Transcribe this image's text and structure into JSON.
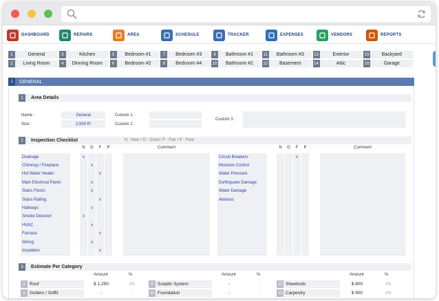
{
  "nav": [
    {
      "label": "DASHBOARD",
      "icon": "house-icon",
      "color": "#c0392b"
    },
    {
      "label": "REPAIRS",
      "icon": "repair-list-icon",
      "color": "#1f8a70"
    },
    {
      "label": "AREA",
      "icon": "map-pin-icon",
      "color": "#e67e22"
    },
    {
      "label": "SCHEDULE",
      "icon": "calendar-icon",
      "color": "#3a6fb5"
    },
    {
      "label": "TRACKER",
      "icon": "tracker-icon",
      "color": "#3a6fb5"
    },
    {
      "label": "EXPENSES",
      "icon": "monitor-icon",
      "color": "#2c6fbb"
    },
    {
      "label": "VENDORS",
      "icon": "vendor-icon",
      "color": "#27a05a"
    },
    {
      "label": "REPORTS",
      "icon": "report-icon",
      "color": "#d35400"
    }
  ],
  "tabs": {
    "row1": [
      {
        "num": "1",
        "label": "General"
      },
      {
        "num": "3",
        "label": "Kitchen"
      },
      {
        "num": "5",
        "label": "Bedroom #1"
      },
      {
        "num": "7",
        "label": "Bedroom #3"
      },
      {
        "num": "9",
        "label": "Bathroom #1"
      },
      {
        "num": "11",
        "label": "Bathroom #3"
      },
      {
        "num": "13",
        "label": "Exterior"
      },
      {
        "num": "15",
        "label": "Backyard"
      }
    ],
    "row2": [
      {
        "num": "2",
        "label": "Living Room"
      },
      {
        "num": "4",
        "label": "Dinning Room"
      },
      {
        "num": "6",
        "label": "Bedroom #2"
      },
      {
        "num": "8",
        "label": "Bedroom #4"
      },
      {
        "num": "10",
        "label": "Bathroom #2"
      },
      {
        "num": "12",
        "label": "Basement"
      },
      {
        "num": "14",
        "label": "Attic"
      },
      {
        "num": "16",
        "label": "Garage"
      }
    ]
  },
  "section": {
    "num": "1",
    "title": "GENERAL"
  },
  "area_details": {
    "num": "1",
    "title": "Area Details",
    "name_label": "Name :",
    "name_value": "General",
    "size_label": "Size :",
    "size_value": "3,500 ft²",
    "custom1_label": "Custom 1 :",
    "custom2_label": "Custom 2 :",
    "custom3_label": "Custom 3 :"
  },
  "checklist": {
    "num": "2",
    "title": "Inspection Checklist",
    "legend": "N : New / G : Good / F : Fair / P : Poor",
    "headers": [
      "N",
      "G",
      "F",
      "P"
    ],
    "comment_header": "Comment",
    "left_items": [
      {
        "name": "Drainage",
        "mark": "N"
      },
      {
        "name": "Chimney / Fireplace",
        "mark": "G"
      },
      {
        "name": "Hot Water Heater",
        "mark": "F"
      },
      {
        "name": "Main Electrical Panel",
        "mark": "G"
      },
      {
        "name": "Stairs Floors",
        "mark": "G"
      },
      {
        "name": "Stairs Railing",
        "mark": "F"
      },
      {
        "name": "Hallways",
        "mark": "G"
      },
      {
        "name": "Smoke Detector",
        "mark": "N"
      },
      {
        "name": "HVAC",
        "mark": "G"
      },
      {
        "name": "Furnace",
        "mark": "F"
      },
      {
        "name": "Wiring",
        "mark": "G"
      },
      {
        "name": "Insulation",
        "mark": "F"
      }
    ],
    "right_items": [
      {
        "name": "Circuit Breakers",
        "mark": "F"
      },
      {
        "name": "Moisture Control",
        "mark": ""
      },
      {
        "name": "Water Pressure",
        "mark": ""
      },
      {
        "name": "Earthquake Damage",
        "mark": ""
      },
      {
        "name": "Water Damage",
        "mark": ""
      },
      {
        "name": "Abestos",
        "mark": ""
      }
    ],
    "mark_symbol": "x"
  },
  "estimate": {
    "num": "3",
    "title": "Estimate Per Category",
    "amount_header": "Amount",
    "pct_header": "%",
    "rows": [
      [
        {
          "num": "1",
          "name": "Roof",
          "amount": "$ 1,250",
          "pct": "2%"
        },
        {
          "num": "5",
          "name": "Sceptic System",
          "amount": "-",
          "pct": "-"
        },
        {
          "num": "12",
          "name": "Sheetrock",
          "amount": "$ 800",
          "pct": "1%"
        }
      ],
      [
        {
          "num": "2",
          "name": "Gutters / Soffit",
          "amount": "-",
          "pct": "-"
        },
        {
          "num": "10",
          "name": "Foundation",
          "amount": "-",
          "pct": "-"
        },
        {
          "num": "13",
          "name": "Carpentry",
          "amount": "$ 900",
          "pct": "1%"
        }
      ]
    ]
  }
}
